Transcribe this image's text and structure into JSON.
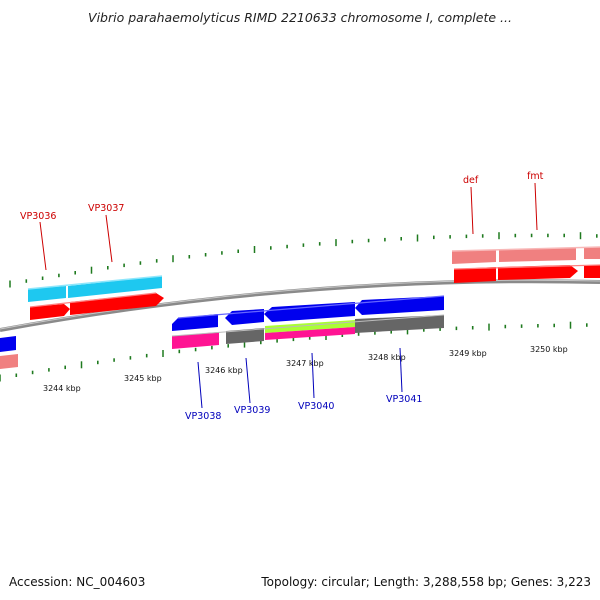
{
  "title": "Vibrio parahaemolyticus RIMD 2210633 chromosome I, complete ...",
  "footer": {
    "accession": "Accession: NC_004603",
    "summary": "Topology: circular; Length: 3,288,558 bp; Genes: 3,223"
  },
  "colors": {
    "backbone": "#8a8a8a",
    "tick": "#1f7a1f",
    "forward_label": "#cc0000",
    "reverse_label": "#0000bb",
    "cds_red": "#ff0000",
    "cds_pink": "#f08080",
    "cds_cyan": "#1ec8f0",
    "cds_blue": "#0000ee",
    "cds_magenta": "#ff1493",
    "cds_gray": "#666666",
    "cds_lime": "#aaff33"
  },
  "scale_labels": [
    "3244 kbp",
    "3245 kbp",
    "3246 kbp",
    "3247 kbp",
    "3248 kbp",
    "3249 kbp",
    "3250 kbp"
  ],
  "forward_gene_labels": [
    "VP3036",
    "VP3037",
    "def",
    "fmt"
  ],
  "reverse_gene_labels": [
    "VP3038",
    "VP3039",
    "VP3040",
    "VP3041"
  ]
}
